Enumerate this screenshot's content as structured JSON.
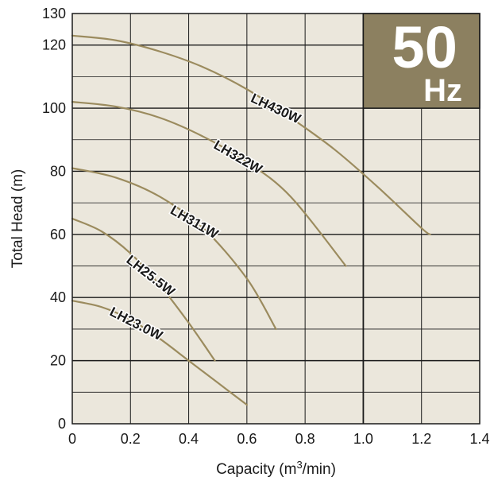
{
  "chart_data": {
    "type": "line",
    "xlabel_main": "Capacity (m",
    "xlabel_sup": "3",
    "xlabel_tail": "/min)",
    "ylabel": "Total Head (m)",
    "xlim": [
      0,
      1.4
    ],
    "ylim": [
      0,
      130
    ],
    "x_ticks": [
      "0",
      "0.2",
      "0.4",
      "0.6",
      "0.8",
      "1.0",
      "1.2",
      "1.4"
    ],
    "y_ticks": [
      "0",
      "20",
      "40",
      "60",
      "80",
      "100",
      "120",
      "130"
    ],
    "grid": true,
    "badge": {
      "value": "50",
      "unit": "Hz",
      "color": "#8c8060"
    },
    "plot_background": "#ebe7dc",
    "curve_color": "#9b8b5e",
    "series": [
      {
        "name": "LH430W",
        "x": [
          0,
          0.15,
          0.3,
          0.45,
          0.6,
          0.75,
          0.9,
          1.05,
          1.2,
          1.23
        ],
        "y": [
          123,
          121.5,
          118,
          113,
          106,
          97,
          87,
          75,
          62,
          60
        ]
      },
      {
        "name": "LH322W",
        "x": [
          0,
          0.15,
          0.3,
          0.45,
          0.6,
          0.75,
          0.94
        ],
        "y": [
          102,
          100.5,
          97,
          91,
          83,
          72,
          50
        ]
      },
      {
        "name": "LH311W",
        "x": [
          0,
          0.15,
          0.3,
          0.45,
          0.6,
          0.7
        ],
        "y": [
          81,
          78,
          72,
          62,
          46,
          30
        ]
      },
      {
        "name": "LH25.5W",
        "x": [
          0,
          0.1,
          0.2,
          0.3,
          0.4,
          0.49
        ],
        "y": [
          65,
          61,
          54,
          44,
          32,
          20
        ]
      },
      {
        "name": "LH23.0W",
        "x": [
          0,
          0.1,
          0.2,
          0.3,
          0.4,
          0.5,
          0.6
        ],
        "y": [
          39,
          37,
          33,
          27,
          20,
          13,
          6
        ]
      }
    ]
  }
}
